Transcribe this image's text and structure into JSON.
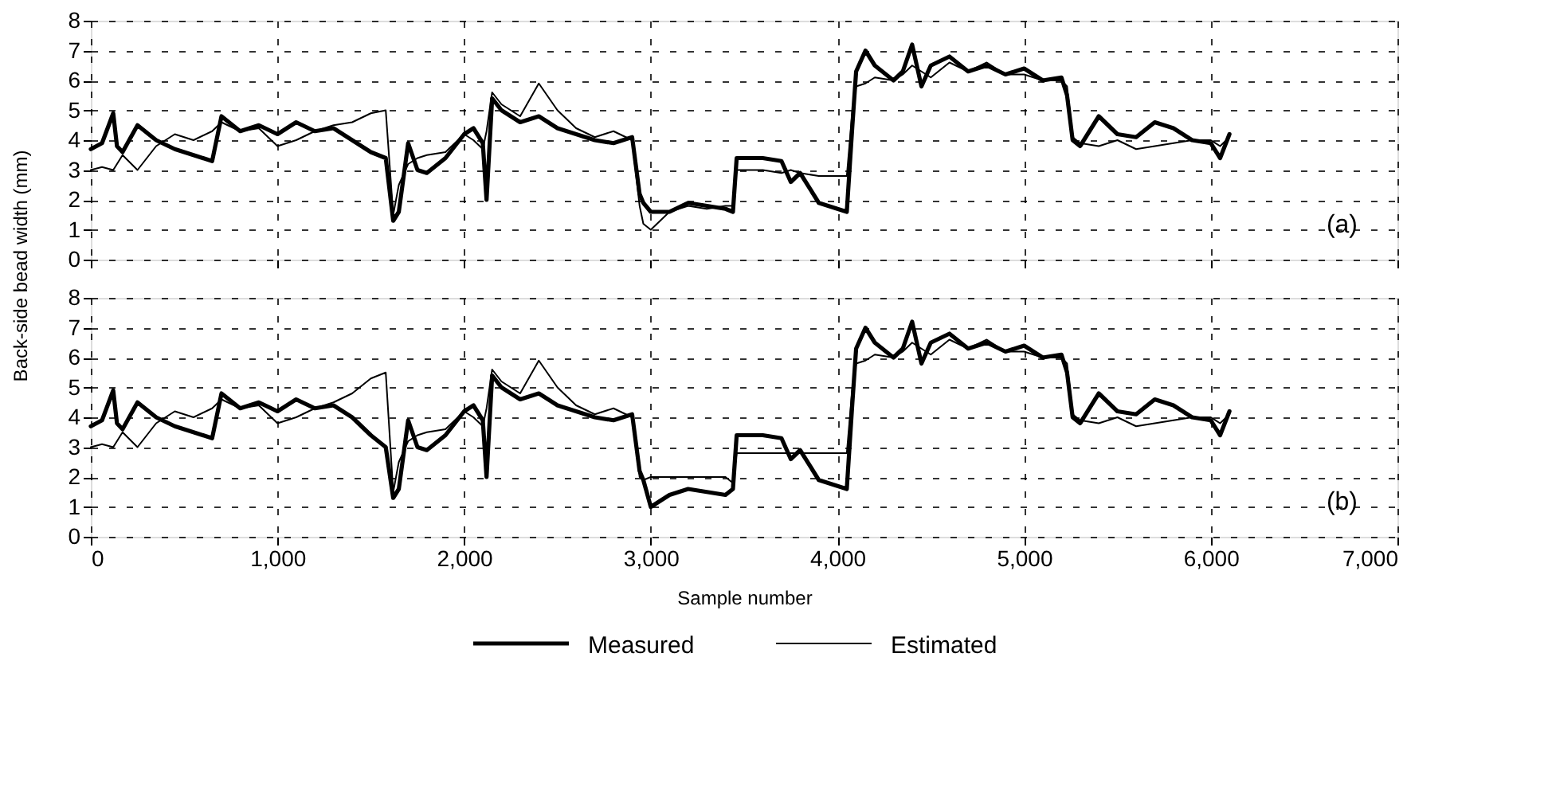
{
  "chart_data": [
    {
      "type": "line",
      "ylabel": "Back-side bead width (mm)",
      "annotations": [
        "(a)"
      ],
      "grid": true,
      "tick_labels": "y",
      "legend": "bottom",
      "xlim": [
        0,
        7000
      ],
      "xticks": [
        0,
        1000,
        2000,
        3000,
        4000,
        5000,
        6000,
        7000
      ],
      "ylim": [
        0,
        8
      ],
      "yticks": [
        0,
        1,
        2,
        3,
        4,
        5,
        6,
        7,
        8
      ],
      "x": [
        0,
        60,
        120,
        140,
        170,
        250,
        350,
        450,
        550,
        650,
        700,
        800,
        900,
        1000,
        1100,
        1200,
        1300,
        1400,
        1500,
        1580,
        1620,
        1650,
        1700,
        1750,
        1800,
        1900,
        2000,
        2050,
        2100,
        2120,
        2150,
        2200,
        2300,
        2400,
        2500,
        2600,
        2700,
        2800,
        2900,
        2940,
        2960,
        3000,
        3100,
        3200,
        3300,
        3400,
        3440,
        3460,
        3600,
        3700,
        3750,
        3800,
        3900,
        4000,
        4050,
        4080,
        4100,
        4150,
        4200,
        4300,
        4350,
        4400,
        4450,
        4500,
        4600,
        4700,
        4800,
        4900,
        5000,
        5100,
        5200,
        5230,
        5260,
        5300,
        5400,
        5500,
        5600,
        5700,
        5800,
        5900,
        6000,
        6050,
        6100
      ],
      "series": [
        {
          "name": "Measured",
          "color": "#000000",
          "values": [
            3.7,
            3.9,
            4.9,
            3.8,
            3.6,
            4.5,
            4.0,
            3.7,
            3.5,
            3.3,
            4.8,
            4.3,
            4.5,
            4.2,
            4.6,
            4.3,
            4.4,
            4.0,
            3.6,
            3.4,
            1.3,
            1.6,
            3.9,
            3.0,
            2.9,
            3.4,
            4.2,
            4.4,
            3.9,
            2.0,
            5.4,
            5.0,
            4.6,
            4.8,
            4.4,
            4.2,
            4.0,
            3.9,
            4.1,
            2.2,
            1.9,
            1.6,
            1.6,
            1.9,
            1.8,
            1.7,
            1.6,
            3.4,
            3.4,
            3.3,
            2.6,
            2.9,
            1.9,
            1.7,
            1.6,
            4.5,
            6.3,
            7.0,
            6.5,
            6.0,
            6.3,
            7.2,
            5.8,
            6.5,
            6.8,
            6.3,
            6.5,
            6.2,
            6.4,
            6.0,
            6.1,
            5.5,
            4.0,
            3.8,
            4.8,
            4.2,
            4.1,
            4.6,
            4.4,
            4.0,
            3.9,
            3.4,
            4.2
          ]
        },
        {
          "name": "Estimated",
          "color": "#000000",
          "values": [
            3.0,
            3.1,
            3.0,
            3.2,
            3.5,
            3.0,
            3.8,
            4.2,
            4.0,
            4.3,
            4.6,
            4.3,
            4.4,
            3.8,
            4.0,
            4.3,
            4.5,
            4.6,
            4.9,
            5.0,
            1.5,
            2.5,
            3.2,
            3.4,
            3.5,
            3.6,
            4.2,
            4.0,
            3.7,
            4.3,
            5.6,
            5.2,
            4.8,
            5.9,
            5.0,
            4.4,
            4.1,
            4.3,
            4.0,
            1.8,
            1.2,
            1.0,
            1.6,
            1.8,
            1.7,
            1.8,
            1.8,
            3.0,
            3.0,
            2.9,
            3.0,
            2.9,
            2.8,
            2.8,
            2.8,
            5.0,
            5.8,
            5.9,
            6.1,
            6.0,
            6.2,
            6.5,
            6.3,
            6.1,
            6.6,
            6.3,
            6.6,
            6.2,
            6.2,
            6.0,
            6.0,
            5.8,
            4.1,
            3.9,
            3.8,
            4.0,
            3.7,
            3.8,
            3.9,
            4.0,
            4.0,
            3.8,
            4.1
          ]
        }
      ]
    },
    {
      "type": "line",
      "xlabel": "Sample number",
      "annotations": [
        "(b)"
      ],
      "grid": true,
      "legend": "bottom",
      "xlim": [
        0,
        7000
      ],
      "xticks": [
        0,
        {
          "value": 1000,
          "label": "1,000"
        },
        {
          "value": 2000,
          "label": "2,000"
        },
        {
          "value": 3000,
          "label": "3,000"
        },
        {
          "value": 4000,
          "label": "4,000"
        },
        {
          "value": 5000,
          "label": "5,000"
        },
        {
          "value": 6000,
          "label": "6,000"
        },
        {
          "value": 7000,
          "label": "7,000"
        }
      ],
      "ylim": [
        0,
        8
      ],
      "yticks": [
        0,
        1,
        2,
        3,
        4,
        5,
        6,
        7,
        8
      ],
      "x": [
        0,
        60,
        120,
        140,
        170,
        250,
        350,
        450,
        550,
        650,
        700,
        800,
        900,
        1000,
        1100,
        1200,
        1300,
        1400,
        1500,
        1580,
        1620,
        1650,
        1700,
        1750,
        1800,
        1900,
        2000,
        2050,
        2100,
        2120,
        2150,
        2200,
        2300,
        2400,
        2500,
        2600,
        2700,
        2800,
        2900,
        2940,
        2960,
        3000,
        3100,
        3200,
        3300,
        3400,
        3440,
        3460,
        3600,
        3700,
        3750,
        3800,
        3900,
        4000,
        4050,
        4080,
        4100,
        4150,
        4200,
        4300,
        4350,
        4400,
        4450,
        4500,
        4600,
        4700,
        4800,
        4900,
        5000,
        5100,
        5200,
        5230,
        5260,
        5300,
        5400,
        5500,
        5600,
        5700,
        5800,
        5900,
        6000,
        6050,
        6100
      ],
      "series": [
        {
          "name": "Measured",
          "color": "#000000",
          "values": [
            3.7,
            3.9,
            4.9,
            3.8,
            3.6,
            4.5,
            4.0,
            3.7,
            3.5,
            3.3,
            4.8,
            4.3,
            4.5,
            4.2,
            4.6,
            4.3,
            4.4,
            4.0,
            3.4,
            3.0,
            1.3,
            1.6,
            3.9,
            3.0,
            2.9,
            3.4,
            4.2,
            4.4,
            3.9,
            2.0,
            5.4,
            5.0,
            4.6,
            4.8,
            4.4,
            4.2,
            4.0,
            3.9,
            4.1,
            2.2,
            1.9,
            1.0,
            1.4,
            1.6,
            1.5,
            1.4,
            1.6,
            3.4,
            3.4,
            3.3,
            2.6,
            2.9,
            1.9,
            1.7,
            1.6,
            4.5,
            6.3,
            7.0,
            6.5,
            6.0,
            6.3,
            7.2,
            5.8,
            6.5,
            6.8,
            6.3,
            6.5,
            6.2,
            6.4,
            6.0,
            6.1,
            5.5,
            4.0,
            3.8,
            4.8,
            4.2,
            4.1,
            4.6,
            4.4,
            4.0,
            3.9,
            3.4,
            4.2
          ]
        },
        {
          "name": "Estimated",
          "color": "#000000",
          "values": [
            3.0,
            3.1,
            3.0,
            3.2,
            3.5,
            3.0,
            3.8,
            4.2,
            4.0,
            4.3,
            4.6,
            4.3,
            4.4,
            3.8,
            4.0,
            4.3,
            4.5,
            4.8,
            5.3,
            5.5,
            1.5,
            2.5,
            3.2,
            3.4,
            3.5,
            3.6,
            4.2,
            4.0,
            3.7,
            4.3,
            5.6,
            5.2,
            4.8,
            5.9,
            5.0,
            4.4,
            4.1,
            4.3,
            4.0,
            2.0,
            1.9,
            2.0,
            2.0,
            2.0,
            2.0,
            2.0,
            1.8,
            2.8,
            2.8,
            2.8,
            2.8,
            2.8,
            2.8,
            2.8,
            2.8,
            5.0,
            5.8,
            5.9,
            6.1,
            6.0,
            6.2,
            6.5,
            6.3,
            6.1,
            6.6,
            6.3,
            6.6,
            6.2,
            6.2,
            6.0,
            6.0,
            5.8,
            4.1,
            3.9,
            3.8,
            4.0,
            3.7,
            3.8,
            3.9,
            4.0,
            4.0,
            3.8,
            4.1
          ]
        }
      ]
    }
  ]
}
